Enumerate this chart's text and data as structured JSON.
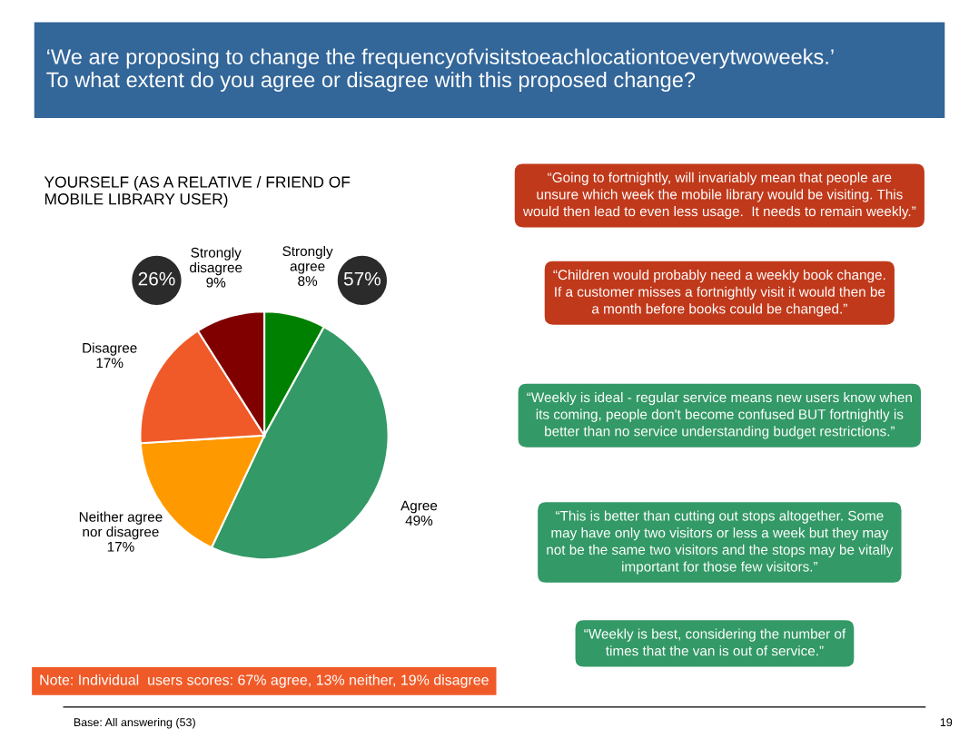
{
  "chart_data": {
    "type": "pie",
    "title": "‘We are proposing to change the frequencyofvisitstoeachlocationtoeverytwoweeks.’\nTo what extent do you agree or disagree with this proposed change?",
    "subtitle": "YOURSELF (AS A RELATIVE / FRIEND OF\nMOBILE LIBRARY USER)",
    "categories": [
      "Strongly agree",
      "Agree",
      "Neither agree nor disagree",
      "Disagree",
      "Strongly disagree"
    ],
    "values": [
      8,
      49,
      17,
      17,
      9
    ],
    "value_labels": [
      "8%",
      "49%",
      "17%",
      "17%",
      "9%"
    ],
    "colors": [
      "#008000",
      "#339966",
      "#ff9900",
      "#f05a28",
      "#800000"
    ],
    "annotations": [
      "57%",
      "26%",
      "“Going to fortnightly, will invariably mean that people are\nunsure which week the mobile library would be visiting. This\nwould then lead to even less usage.  It needs to remain weekly.”",
      "“Children would probably need a weekly book change.\nIf a customer misses a fortnightly visit it would then be\na month before books could be changed.”",
      "“Weekly is ideal - regular service means new users know when\nits coming, people don't become confused BUT fortnightly is\nbetter than no service understanding budget restrictions.”",
      "“This is better than cutting out stops altogether. Some\nmay have only two visitors or less a week but they may\nnot be the same two visitors and the stops may be vitally\nimportant for those few visitors.”",
      "“Weekly is best, considering the number of\ntimes that the van is out of service.”",
      "Note: Individual  users scores: 67% agree, 13% neither, 19% disagree",
      "Base: All answering (53)",
      "19"
    ]
  }
}
